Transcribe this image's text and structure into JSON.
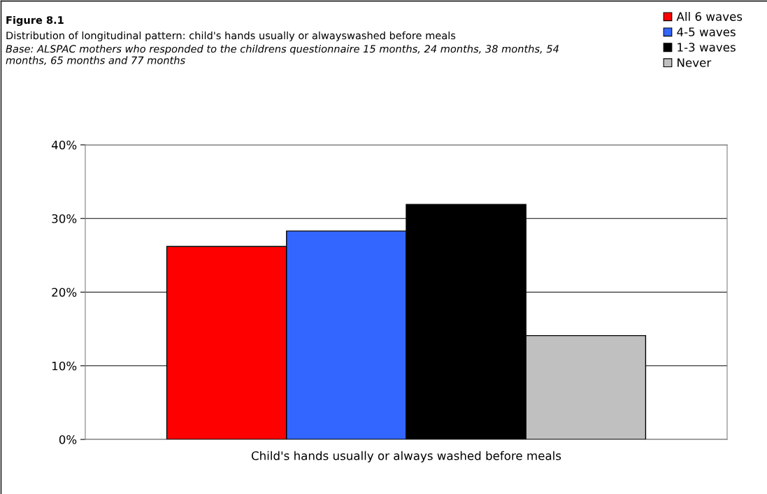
{
  "chart_data": {
    "type": "bar",
    "title": "Figure 8.1",
    "subtitle": "Distribution of longitudinal pattern: child's hands usually or alwayswashed before meals",
    "annotations": [
      "Base: ALSPAC mothers who responded to the childrens questionnaire 15 months, 24 months, 38 months, 54 months, 65 months and 77 months"
    ],
    "categories": [
      "Child's hands usually or always washed before meals"
    ],
    "series": [
      {
        "name": "All 6 waves",
        "color": "#ff0000",
        "values": [
          26.2
        ]
      },
      {
        "name": "4-5 waves",
        "color": "#3366ff",
        "values": [
          28.3
        ]
      },
      {
        "name": "1-3 waves",
        "color": "#000000",
        "values": [
          31.9
        ]
      },
      {
        "name": "Never",
        "color": "#c0c0c0",
        "values": [
          14.1
        ]
      }
    ],
    "ylim": [
      0,
      40
    ],
    "yticks": [
      {
        "value": 0,
        "label": "0%"
      },
      {
        "value": 10,
        "label": "10%"
      },
      {
        "value": 20,
        "label": "20%"
      },
      {
        "value": 30,
        "label": "30%"
      },
      {
        "value": 40,
        "label": "40%"
      }
    ],
    "grid": "y",
    "legend": "top right"
  }
}
